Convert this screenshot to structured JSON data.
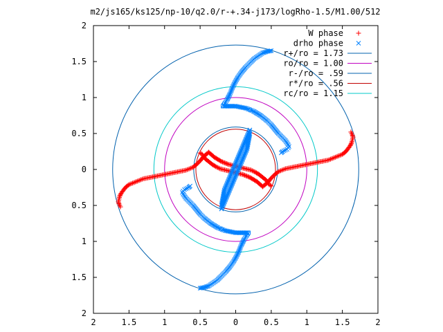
{
  "chart_data": {
    "type": "scatter",
    "title": "m2/js165/ks125/np-10/q2.0/r-+.34-j173/logRho-1.5/M1.00/512",
    "xlabel": "",
    "ylabel": "",
    "xlim": [
      -2,
      2
    ],
    "ylim": [
      -2,
      2
    ],
    "xticks": [
      -2,
      -1.5,
      -1,
      -0.5,
      0,
      0.5,
      1,
      1.5,
      2
    ],
    "yticks": [
      -2,
      -1.5,
      -1,
      -0.5,
      0,
      0.5,
      1,
      1.5,
      2
    ],
    "xtick_labels": [
      "2",
      "1.5",
      "1",
      "0.5",
      "0",
      "0.5",
      "1",
      "1.5",
      "2"
    ],
    "ytick_labels": [
      "2",
      "1.5",
      "1",
      "0.5",
      "0",
      "0.5",
      "1",
      "1.5",
      "2"
    ],
    "grid": false,
    "legend_position": "top-right",
    "legend": [
      {
        "label": "W phase",
        "color": "#ff0000",
        "marker": "plus"
      },
      {
        "label": "drho phase",
        "color": "#0080ff",
        "marker": "cross"
      },
      {
        "label": "r+/ro = 1.73",
        "color": "#0060ad",
        "marker": "line"
      },
      {
        "label": "ro/ro = 1.00",
        "color": "#c000c0",
        "marker": "line"
      },
      {
        "label": "r-/ro = .59",
        "color": "#0060ad",
        "marker": "line"
      },
      {
        "label": "r*/ro = .56",
        "color": "#c00000",
        "marker": "line"
      },
      {
        "label": "rc/ro = 1.15",
        "color": "#00c8c8",
        "marker": "line"
      }
    ],
    "circles": [
      {
        "name": "r+/ro = 1.73",
        "r": 1.73,
        "color": "#0060ad"
      },
      {
        "name": "ro/ro = 1.00",
        "r": 1.0,
        "color": "#c000c0"
      },
      {
        "name": "r-/ro = .59",
        "r": 0.59,
        "color": "#0060ad"
      },
      {
        "name": "r*/ro = .56",
        "r": 0.56,
        "color": "#c00000"
      },
      {
        "name": "rc/ro = 1.15",
        "r": 1.15,
        "color": "#00c8c8"
      }
    ],
    "series": [
      {
        "name": "W phase",
        "color": "#ff0000",
        "marker": "plus",
        "x": [
          -0.5,
          -0.47,
          -0.43,
          -0.38,
          -0.33,
          -0.28,
          -0.22,
          -0.14,
          -0.06,
          0.02,
          0.1,
          0.2,
          0.3,
          0.38,
          0.45,
          0.5,
          0.55,
          0.6,
          0.65,
          0.7,
          0.75,
          0.8,
          0.85,
          0.9,
          0.95,
          1.0,
          1.05,
          1.1,
          1.15,
          1.2,
          1.25,
          1.3,
          1.35,
          1.4,
          1.45,
          1.5,
          1.55,
          1.58,
          1.61,
          1.63,
          1.64,
          1.65,
          1.64,
          1.63,
          1.62,
          0.5,
          0.47,
          0.43,
          0.38,
          0.33,
          0.28,
          0.22,
          0.14,
          0.06,
          -0.02,
          -0.1,
          -0.2,
          -0.3,
          -0.38,
          -0.45,
          -0.5,
          -0.55,
          -0.6,
          -0.65,
          -0.7,
          -0.75,
          -0.8,
          -0.85,
          -0.9,
          -0.95,
          -1.0,
          -1.05,
          -1.1,
          -1.15,
          -1.2,
          -1.25,
          -1.3,
          -1.35,
          -1.4,
          -1.45,
          -1.5,
          -1.55,
          -1.58,
          -1.61,
          -1.63,
          -1.64,
          -1.65,
          -1.64,
          -1.63,
          -1.62
        ],
        "y": [
          0.23,
          0.21,
          0.15,
          0.11,
          0.07,
          0.04,
          0.01,
          -0.01,
          -0.03,
          -0.05,
          -0.07,
          -0.11,
          -0.17,
          -0.24,
          -0.18,
          -0.12,
          -0.07,
          -0.03,
          -0.01,
          0.01,
          0.02,
          0.03,
          0.04,
          0.05,
          0.06,
          0.07,
          0.08,
          0.09,
          0.1,
          0.11,
          0.12,
          0.13,
          0.15,
          0.17,
          0.19,
          0.21,
          0.25,
          0.29,
          0.33,
          0.37,
          0.41,
          0.45,
          0.48,
          0.5,
          0.52,
          -0.23,
          -0.21,
          -0.15,
          -0.11,
          -0.07,
          -0.04,
          -0.01,
          0.01,
          0.03,
          0.05,
          0.07,
          0.11,
          0.17,
          0.24,
          0.18,
          0.12,
          0.07,
          0.03,
          0.01,
          -0.01,
          -0.02,
          -0.03,
          -0.04,
          -0.05,
          -0.06,
          -0.07,
          -0.08,
          -0.09,
          -0.1,
          -0.11,
          -0.12,
          -0.13,
          -0.15,
          -0.17,
          -0.19,
          -0.21,
          -0.25,
          -0.29,
          -0.33,
          -0.37,
          -0.41,
          -0.45,
          -0.48,
          -0.5,
          -0.52
        ]
      },
      {
        "name": "drho phase",
        "color": "#0080ff",
        "marker": "cross",
        "x": [
          0.5,
          0.44,
          0.38,
          0.32,
          0.26,
          0.2,
          0.14,
          0.08,
          0.03,
          -0.01,
          -0.04,
          -0.06,
          -0.08,
          -0.1,
          -0.12,
          -0.14,
          -0.16,
          -0.18,
          0.0,
          0.05,
          0.1,
          0.15,
          0.2,
          0.25,
          0.3,
          0.35,
          0.4,
          0.45,
          0.5,
          0.55,
          0.6,
          0.65,
          0.7,
          0.72,
          0.74,
          0.75,
          0.74,
          0.72,
          0.7,
          0.68,
          0.66,
          0.65,
          0.64,
          0.2,
          0.17,
          0.14,
          0.11,
          0.08,
          0.05,
          0.02,
          -0.01,
          -0.04,
          -0.07,
          -0.1,
          -0.13,
          -0.16,
          -0.2,
          -0.5,
          -0.44,
          -0.38,
          -0.32,
          -0.26,
          -0.2,
          -0.14,
          -0.08,
          -0.03,
          0.01,
          0.04,
          0.06,
          0.08,
          0.1,
          0.12,
          0.14,
          0.16,
          0.18,
          0.0,
          -0.05,
          -0.1,
          -0.15,
          -0.2,
          -0.25,
          -0.3,
          -0.35,
          -0.4,
          -0.45,
          -0.5,
          -0.55,
          -0.6,
          -0.65,
          -0.7,
          -0.72,
          -0.74,
          -0.75,
          -0.74,
          -0.72,
          -0.7,
          -0.68,
          -0.66,
          -0.65,
          -0.64,
          -0.2,
          -0.17,
          -0.14,
          -0.11,
          -0.08,
          -0.05,
          -0.02,
          0.01,
          0.04,
          0.07,
          0.1,
          0.13,
          0.16,
          0.2
        ],
        "y": [
          1.65,
          1.64,
          1.62,
          1.58,
          1.54,
          1.48,
          1.42,
          1.35,
          1.28,
          1.21,
          1.15,
          1.1,
          1.05,
          1.01,
          0.97,
          0.94,
          0.91,
          0.88,
          0.88,
          0.87,
          0.86,
          0.85,
          0.83,
          0.81,
          0.78,
          0.75,
          0.71,
          0.67,
          0.62,
          0.56,
          0.5,
          0.45,
          0.4,
          0.37,
          0.34,
          0.32,
          0.3,
          0.28,
          0.27,
          0.26,
          0.25,
          0.24,
          0.23,
          0.55,
          0.48,
          0.41,
          0.34,
          0.27,
          0.2,
          0.13,
          0.06,
          -0.01,
          -0.08,
          -0.15,
          -0.22,
          -0.29,
          -0.5,
          -1.65,
          -1.64,
          -1.62,
          -1.58,
          -1.54,
          -1.48,
          -1.42,
          -1.35,
          -1.28,
          -1.21,
          -1.15,
          -1.1,
          -1.05,
          -1.01,
          -0.97,
          -0.94,
          -0.91,
          -0.88,
          -0.88,
          -0.87,
          -0.86,
          -0.85,
          -0.83,
          -0.81,
          -0.78,
          -0.75,
          -0.71,
          -0.67,
          -0.62,
          -0.56,
          -0.5,
          -0.45,
          -0.4,
          -0.37,
          -0.34,
          -0.32,
          -0.3,
          -0.28,
          -0.27,
          -0.26,
          -0.25,
          -0.24,
          -0.23,
          -0.55,
          -0.48,
          -0.41,
          -0.34,
          -0.27,
          -0.2,
          -0.13,
          -0.06,
          0.01,
          0.08,
          0.15,
          0.22,
          0.29,
          0.5
        ]
      }
    ]
  }
}
